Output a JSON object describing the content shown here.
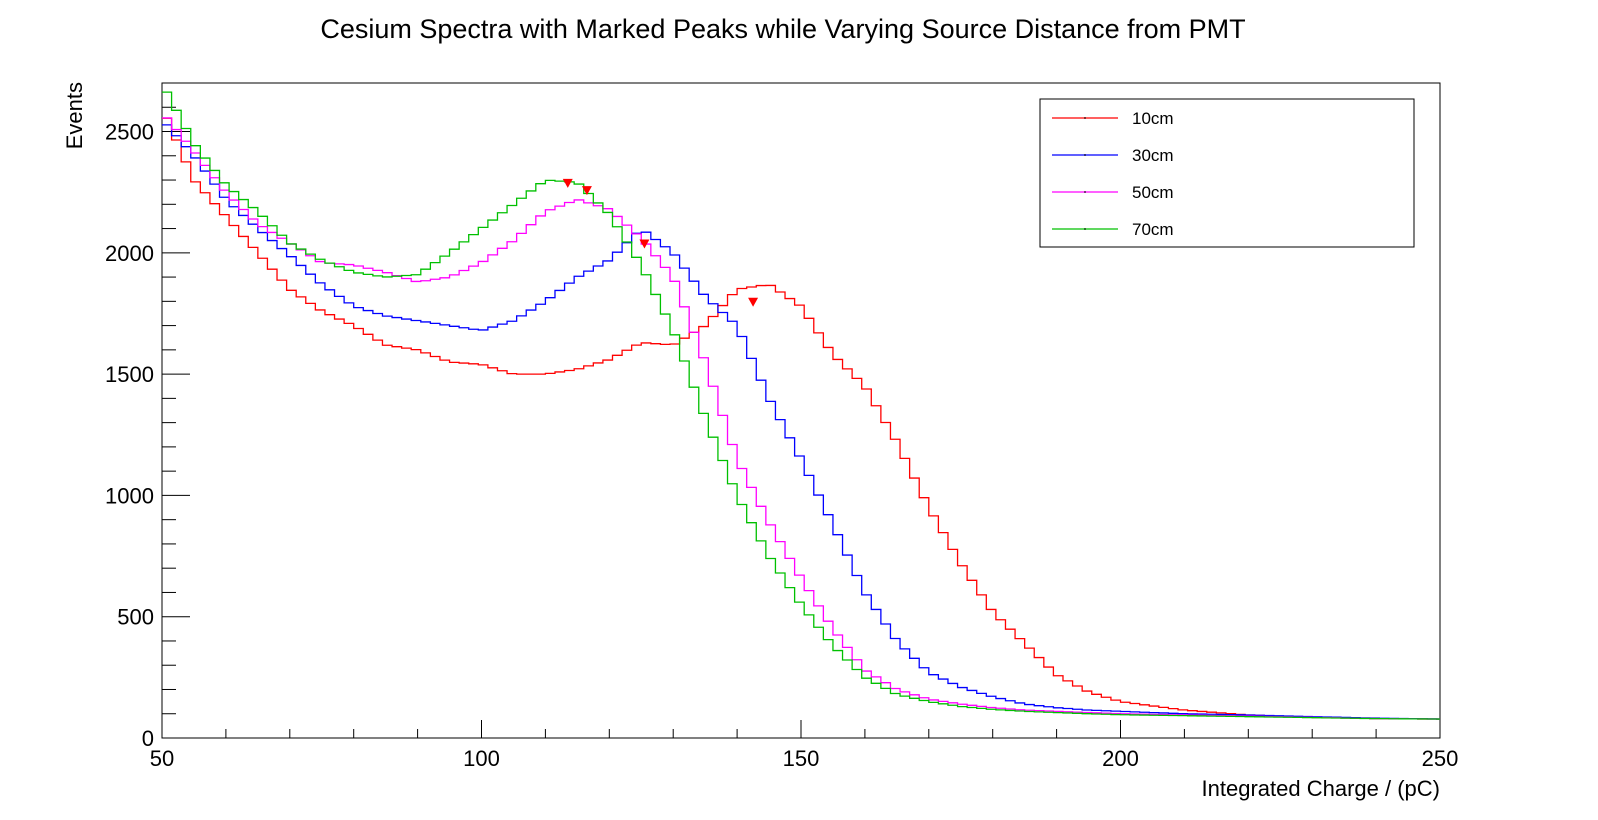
{
  "chart_data": {
    "type": "line",
    "title": "Cesium Spectra with Marked Peaks while Varying Source Distance from PMT",
    "xlabel": "Integrated Charge / (pC)",
    "ylabel": "Events",
    "xlim": [
      50,
      250
    ],
    "ylim": [
      0,
      2700
    ],
    "x_ticks": [
      50,
      100,
      150,
      200,
      250
    ],
    "y_ticks": [
      0,
      500,
      1000,
      1500,
      2000,
      2500
    ],
    "legend_position": "top-right",
    "series": [
      {
        "name": "10cm",
        "color": "#ff0000",
        "x": [
          50,
          55,
          60,
          65,
          70,
          75,
          80,
          85,
          90,
          95,
          100,
          105,
          110,
          115,
          120,
          125,
          130,
          135,
          140,
          145,
          150,
          155,
          160,
          165,
          170,
          175,
          180,
          185,
          190,
          195,
          200,
          210,
          220,
          230,
          240,
          250
        ],
        "y": [
          2600,
          2300,
          2150,
          2000,
          1850,
          1760,
          1700,
          1620,
          1600,
          1550,
          1540,
          1500,
          1500,
          1520,
          1560,
          1630,
          1620,
          1700,
          1850,
          1870,
          1780,
          1580,
          1450,
          1220,
          950,
          720,
          520,
          390,
          260,
          190,
          150,
          115,
          95,
          85,
          80,
          78
        ]
      },
      {
        "name": "30cm",
        "color": "#0000ff",
        "x": [
          50,
          55,
          60,
          65,
          70,
          75,
          80,
          85,
          90,
          95,
          100,
          105,
          110,
          115,
          120,
          125,
          130,
          135,
          140,
          145,
          150,
          155,
          160,
          165,
          170,
          175,
          180,
          185,
          190,
          195,
          200,
          210,
          220,
          230,
          240,
          250
        ],
        "y": [
          2550,
          2400,
          2220,
          2100,
          1990,
          1870,
          1780,
          1740,
          1720,
          1700,
          1680,
          1720,
          1800,
          1900,
          1970,
          2100,
          2000,
          1820,
          1700,
          1400,
          1150,
          880,
          600,
          400,
          270,
          210,
          170,
          140,
          125,
          115,
          110,
          100,
          95,
          88,
          82,
          78
        ]
      },
      {
        "name": "50cm",
        "color": "#ff00ff",
        "x": [
          50,
          55,
          60,
          65,
          70,
          75,
          80,
          85,
          90,
          95,
          100,
          105,
          110,
          115,
          120,
          125,
          130,
          135,
          140,
          145,
          150,
          155,
          160,
          165,
          170,
          175,
          180,
          185,
          190,
          195,
          200,
          210,
          220,
          230,
          240,
          250
        ],
        "y": [
          2580,
          2420,
          2250,
          2120,
          2040,
          1960,
          1950,
          1920,
          1880,
          1900,
          1960,
          2050,
          2170,
          2220,
          2180,
          2060,
          1900,
          1550,
          1150,
          890,
          660,
          450,
          280,
          200,
          160,
          140,
          125,
          115,
          110,
          105,
          100,
          95,
          90,
          85,
          80,
          78
        ]
      },
      {
        "name": "70cm",
        "color": "#00c000",
        "x": [
          50,
          55,
          60,
          65,
          70,
          75,
          80,
          85,
          90,
          95,
          100,
          105,
          110,
          115,
          120,
          125,
          130,
          135,
          140,
          145,
          150,
          155,
          160,
          165,
          170,
          175,
          180,
          185,
          190,
          195,
          200,
          210,
          220,
          230,
          240,
          250
        ],
        "y": [
          2700,
          2450,
          2280,
          2170,
          2040,
          1970,
          1920,
          1900,
          1910,
          2000,
          2100,
          2200,
          2300,
          2290,
          2160,
          1950,
          1680,
          1320,
          1000,
          750,
          550,
          380,
          250,
          180,
          150,
          130,
          118,
          110,
          105,
          100,
          96,
          92,
          88,
          84,
          80,
          78
        ]
      }
    ],
    "peak_markers": [
      {
        "series": "10cm",
        "x": 142.5,
        "y": 1790
      },
      {
        "series": "30cm",
        "x": 125.5,
        "y": 2030
      },
      {
        "series": "50cm",
        "x": 116.5,
        "y": 2250
      },
      {
        "series": "70cm",
        "x": 113.5,
        "y": 2280
      }
    ],
    "marker_color": "#ff0000"
  }
}
